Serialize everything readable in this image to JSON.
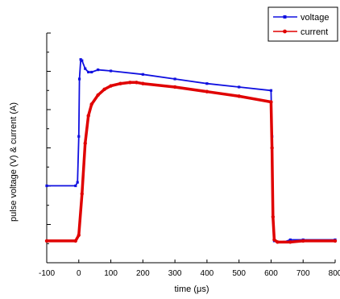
{
  "chart_data": {
    "type": "line",
    "title": "",
    "xlabel": "time (μs)",
    "ylabel": "pulse voltage (V) & current (A)",
    "xlim": [
      -100,
      800
    ],
    "x_ticks": [
      "-100",
      "0",
      "100",
      "200",
      "300",
      "400",
      "500",
      "600",
      "700",
      "800"
    ],
    "ylim": [
      0,
      1
    ],
    "y_tick_labels": "none",
    "legend_position": "top-right",
    "grid": false,
    "series": [
      {
        "name": "voltage",
        "color": "#1010e0",
        "marker": "square",
        "x": [
          -100,
          -10,
          -4,
          0,
          2,
          6,
          10,
          20,
          30,
          40,
          60,
          100,
          200,
          300,
          400,
          500,
          600,
          603,
          606,
          610,
          620,
          640,
          660,
          700,
          800
        ],
        "y": [
          0.335,
          0.335,
          0.35,
          0.55,
          0.8,
          0.885,
          0.88,
          0.845,
          0.83,
          0.83,
          0.84,
          0.835,
          0.82,
          0.8,
          0.78,
          0.765,
          0.75,
          0.55,
          0.2,
          0.095,
          0.09,
          0.09,
          0.1,
          0.1,
          0.1
        ]
      },
      {
        "name": "current",
        "color": "#e00000",
        "marker": "circle",
        "x": [
          -100,
          -10,
          0,
          10,
          20,
          30,
          40,
          60,
          80,
          100,
          130,
          160,
          180,
          200,
          300,
          400,
          500,
          600,
          603,
          606,
          610,
          620,
          660,
          700,
          800
        ],
        "y": [
          0.095,
          0.095,
          0.12,
          0.3,
          0.52,
          0.64,
          0.69,
          0.73,
          0.755,
          0.77,
          0.78,
          0.785,
          0.785,
          0.78,
          0.765,
          0.745,
          0.725,
          0.7,
          0.5,
          0.2,
          0.1,
          0.09,
          0.09,
          0.095,
          0.095
        ]
      }
    ]
  }
}
